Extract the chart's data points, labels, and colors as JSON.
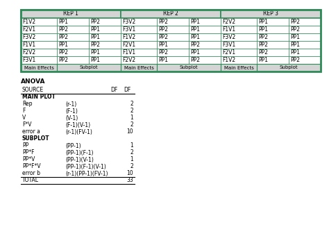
{
  "top_table": {
    "rep_headers": [
      "REP 1",
      "REP 2",
      "REP 3"
    ],
    "rows": [
      [
        "F1V2",
        "PP1",
        "PP2",
        "F3V2",
        "PP2",
        "PP1",
        "F2V2",
        "PP1",
        "PP2"
      ],
      [
        "F2V1",
        "PP2",
        "PP1",
        "F3V1",
        "PP2",
        "PP1",
        "F1V1",
        "PP1",
        "PP2"
      ],
      [
        "F3V2",
        "PP2",
        "PP1",
        "F1V2",
        "PP2",
        "PP1",
        "F3V2",
        "PP2",
        "PP1"
      ],
      [
        "F1V1",
        "PP1",
        "PP2",
        "F2V1",
        "PP1",
        "PP2",
        "F3V1",
        "PP2",
        "PP1"
      ],
      [
        "F2V2",
        "PP2",
        "PP1",
        "F1V1",
        "PP2",
        "PP1",
        "F2V1",
        "PP2",
        "PP1"
      ],
      [
        "F3V1",
        "PP2",
        "PP1",
        "F2V2",
        "PP1",
        "PP2",
        "F1V2",
        "PP1",
        "PP2"
      ]
    ],
    "footer": [
      "Main Effects",
      "Subplot",
      "Main Effects",
      "Subplot",
      "Main Effects",
      "Subplot"
    ]
  },
  "anova_title": "ANOVA",
  "anova_table": {
    "header": [
      "SOURCE",
      "DF",
      "DF"
    ],
    "sections": [
      {
        "section_header": "MAIN PLOT",
        "rows": [
          [
            "Rep",
            "(r-1)",
            "2"
          ],
          [
            "F",
            "(F-1)",
            "2"
          ],
          [
            "V",
            "(V-1)",
            "1"
          ],
          [
            "F*V",
            "(F-1)(V-1)",
            "2"
          ],
          [
            "error a",
            "(r-1)(FV-1)",
            "10"
          ]
        ]
      },
      {
        "section_header": "SUBPLOT",
        "rows": [
          [
            "PP",
            "(PP-1)",
            "1"
          ],
          [
            "PP*F",
            "(PP-1)(F-1)",
            "2"
          ],
          [
            "PP*V",
            "(PP-1)(V-1)",
            "1"
          ],
          [
            "PP*F*V",
            "(PP-1)(F-1)(V-1)",
            "2"
          ],
          [
            "error b",
            "(r-1)(PP-1)(FV-1)",
            "10"
          ]
        ]
      }
    ],
    "total_row": [
      "TOTAL",
      "",
      "33"
    ]
  },
  "bg_color": "#ffffff",
  "header_bg": "#d4d4d4",
  "border_color": "#000000",
  "cell_text_color": "#000000",
  "table_border_color": "#2d8b57",
  "font_size": 5.5
}
